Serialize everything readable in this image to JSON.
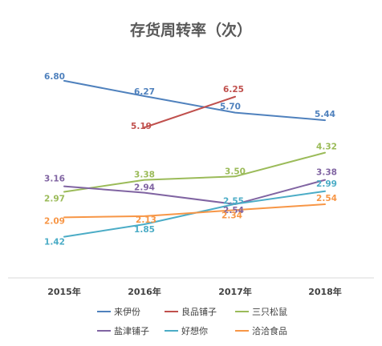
{
  "chart_data": {
    "type": "line",
    "title": "存货周转率（次）",
    "xlabel": "",
    "ylabel": "",
    "categories": [
      "2015年",
      "2016年",
      "2017年",
      "2018年"
    ],
    "ylim": [
      0,
      8
    ],
    "grid": false,
    "legend": "bottom",
    "series": [
      {
        "name": "来伊份",
        "color": "#4F81BD",
        "values": [
          6.8,
          6.27,
          5.7,
          5.44
        ],
        "labels": [
          "6.80",
          "6.27",
          "5.70",
          "5.44"
        ]
      },
      {
        "name": "良品铺子",
        "color": "#C0504D",
        "values": [
          null,
          5.19,
          6.25,
          null
        ],
        "labels": [
          "",
          "5.19",
          "6.25",
          ""
        ]
      },
      {
        "name": "三只松鼠",
        "color": "#9BBB59",
        "values": [
          2.97,
          3.38,
          3.5,
          4.32
        ],
        "labels": [
          "2.97",
          "3.38",
          "3.50",
          "4.32"
        ]
      },
      {
        "name": "盐津铺子",
        "color": "#8064A2",
        "values": [
          3.16,
          2.94,
          2.54,
          3.38
        ],
        "labels": [
          "3.16",
          "2.94",
          "2.54",
          "3.38"
        ]
      },
      {
        "name": "好想你",
        "color": "#4BACC6",
        "values": [
          1.42,
          1.85,
          2.55,
          2.99
        ],
        "labels": [
          "1.42",
          "1.85",
          "2.55",
          "2.99"
        ]
      },
      {
        "name": "洽洽食品",
        "color": "#F79646",
        "values": [
          2.09,
          2.13,
          2.34,
          2.54
        ],
        "labels": [
          "2.09",
          "2.13",
          "2.34",
          "2.54"
        ]
      }
    ]
  }
}
